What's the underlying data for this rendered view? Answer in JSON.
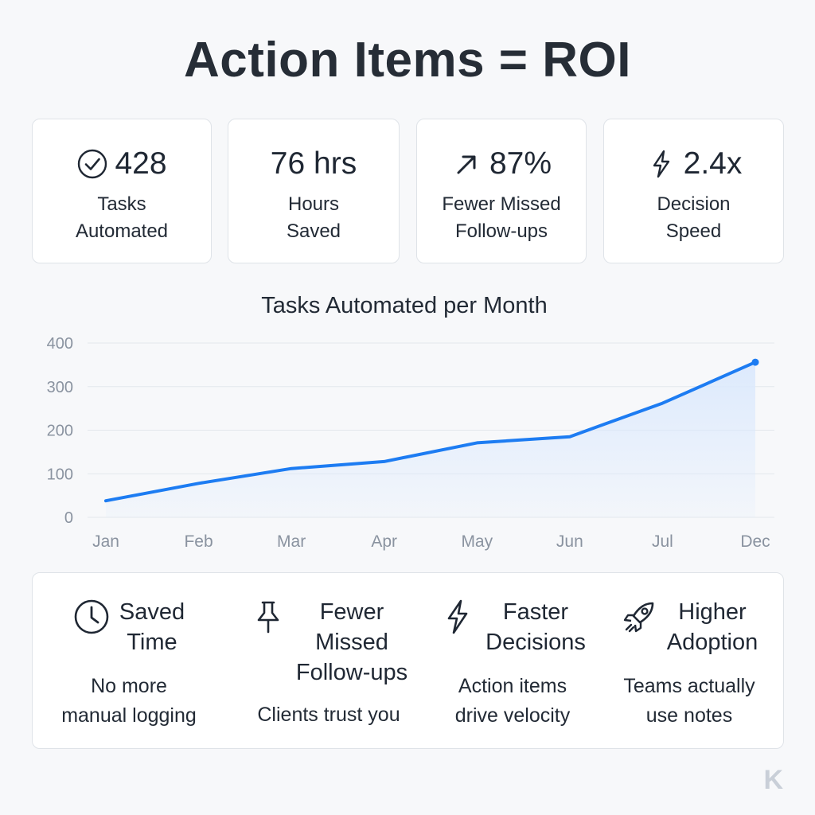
{
  "title": "Action Items = ROI",
  "kpis": [
    {
      "icon": "check-circle-icon",
      "value": "428",
      "label": "Tasks\nAutomated"
    },
    {
      "icon": "",
      "value": "76 hrs",
      "label": "Hours\nSaved"
    },
    {
      "icon": "arrow-up-right-icon",
      "value": "87%",
      "label": "Fewer Missed\nFollow-ups"
    },
    {
      "icon": "lightning-icon",
      "value": "2.4x",
      "label": "Decision\nSpeed"
    }
  ],
  "chart_data": {
    "type": "area",
    "title": "Tasks Automated per Month",
    "categories": [
      "Jan",
      "Feb",
      "Mar",
      "Apr",
      "May",
      "Jun",
      "Jul",
      "Dec"
    ],
    "values": [
      38,
      78,
      112,
      128,
      171,
      185,
      262,
      356
    ],
    "ylim": [
      0,
      400
    ],
    "yticks": [
      0,
      100,
      200,
      300,
      400
    ],
    "xlabel": "",
    "ylabel": "",
    "grid": true,
    "legend": "none",
    "colors": {
      "line": "#1d7cf2",
      "fill": "#dbe9fd",
      "grid": "#e3e7ec",
      "tick": "#8a93a0"
    }
  },
  "benefits": [
    {
      "icon": "clock-icon",
      "title": "Saved\nTime",
      "desc": "No more\nmanual logging"
    },
    {
      "icon": "pushpin-icon",
      "title": "Fewer\nMissed\nFollow-ups",
      "desc": "Clients trust you"
    },
    {
      "icon": "lightning-icon",
      "title": "Faster\nDecisions",
      "desc": "Action items\ndrive velocity"
    },
    {
      "icon": "rocket-icon",
      "title": "Higher\nAdoption",
      "desc": "Teams actually\nuse notes"
    }
  ],
  "watermark": "K"
}
